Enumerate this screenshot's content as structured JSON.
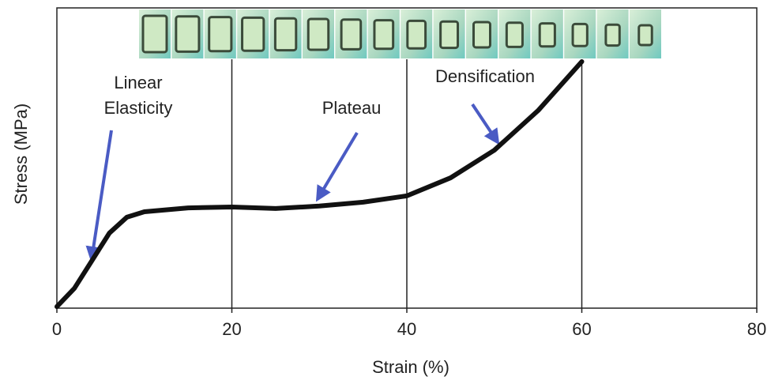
{
  "chart_data": {
    "type": "line",
    "x_label": "Strain (%)",
    "y_label": "Stress (MPa)",
    "x": [
      0,
      2,
      4,
      6,
      8,
      10,
      15,
      20,
      25,
      30,
      35,
      40,
      45,
      50,
      55,
      60
    ],
    "series": [
      {
        "color": "#111111",
        "values": [
          0.5,
          6.6,
          15.8,
          25,
          30.3,
          32.1,
          33.4,
          33.7,
          33.2,
          34,
          35.3,
          37.4,
          43.4,
          52.6,
          65.8,
          82.1
        ]
      }
    ],
    "xlim": [
      0,
      80
    ],
    "xticks": [
      0,
      20,
      40,
      60,
      80
    ],
    "ylim": [
      0,
      100
    ],
    "dividers": [
      20,
      40,
      60
    ],
    "annotations": [
      {
        "lines": [
          "Linear",
          "Elasticity"
        ]
      },
      {
        "lines": [
          "Plateau"
        ]
      },
      {
        "lines": [
          "Densification"
        ]
      }
    ]
  }
}
